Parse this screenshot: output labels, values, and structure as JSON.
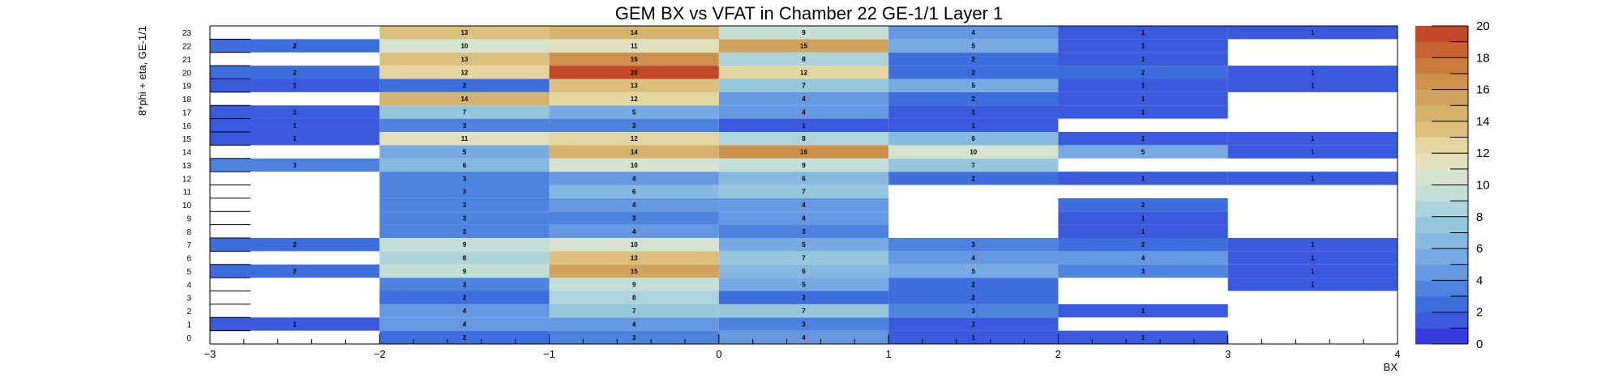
{
  "chart_data": {
    "type": "heatmap",
    "title": "GEM BX vs VFAT in Chamber 22 GE-1/1 Layer 1",
    "xlabel": "BX",
    "ylabel": "8*phi + eta, GE-1/1",
    "x_bin_edges": [
      -3,
      -2,
      -1,
      0,
      1,
      2,
      3,
      4
    ],
    "xlim": [
      -3,
      4
    ],
    "ylim": [
      0,
      24
    ],
    "x_ticks": [
      -3,
      -2,
      -1,
      0,
      1,
      2,
      3,
      4
    ],
    "x_tick_labels": [
      "−3",
      "−2",
      "−1",
      "0",
      "1",
      "2",
      "3",
      "4"
    ],
    "y_categories": [
      "0",
      "1",
      "2",
      "3",
      "4",
      "5",
      "6",
      "7",
      "8",
      "9",
      "10",
      "11",
      "12",
      "13",
      "14",
      "15",
      "16",
      "17",
      "18",
      "19",
      "20",
      "21",
      "22",
      "23"
    ],
    "z_range": [
      0,
      20
    ],
    "colorbar_ticks": [
      0,
      2,
      4,
      6,
      8,
      10,
      12,
      14,
      16,
      18,
      20
    ],
    "colorbar_tick_labels": [
      "0",
      "2",
      "4",
      "6",
      "8",
      "10",
      "12",
      "14",
      "16",
      "18",
      "20"
    ],
    "columns": [
      "-3..-2",
      "-2..-1",
      "-1..0",
      "0..1",
      "1..2",
      "2..3",
      "3..4"
    ],
    "rows": [
      {
        "y": 0,
        "values": [
          null,
          2,
          3,
          4,
          1,
          1,
          null
        ]
      },
      {
        "y": 1,
        "values": [
          1,
          4,
          4,
          3,
          1,
          null,
          null
        ]
      },
      {
        "y": 2,
        "values": [
          null,
          4,
          7,
          7,
          3,
          1,
          null
        ]
      },
      {
        "y": 3,
        "values": [
          null,
          2,
          8,
          2,
          2,
          null,
          null
        ]
      },
      {
        "y": 4,
        "values": [
          null,
          3,
          9,
          5,
          2,
          null,
          1
        ]
      },
      {
        "y": 5,
        "values": [
          2,
          9,
          15,
          6,
          5,
          3,
          1
        ]
      },
      {
        "y": 6,
        "values": [
          null,
          8,
          13,
          7,
          4,
          4,
          1
        ]
      },
      {
        "y": 7,
        "values": [
          2,
          9,
          10,
          5,
          3,
          2,
          1
        ]
      },
      {
        "y": 8,
        "values": [
          null,
          3,
          4,
          3,
          null,
          1,
          null
        ]
      },
      {
        "y": 9,
        "values": [
          null,
          3,
          3,
          4,
          null,
          1,
          null
        ]
      },
      {
        "y": 10,
        "values": [
          null,
          3,
          4,
          4,
          null,
          2,
          null
        ]
      },
      {
        "y": 11,
        "values": [
          null,
          3,
          6,
          7,
          null,
          null,
          null
        ]
      },
      {
        "y": 12,
        "values": [
          null,
          3,
          4,
          6,
          2,
          1,
          1
        ]
      },
      {
        "y": 13,
        "values": [
          3,
          6,
          10,
          9,
          7,
          null,
          null
        ]
      },
      {
        "y": 14,
        "values": [
          null,
          5,
          14,
          16,
          10,
          5,
          1
        ]
      },
      {
        "y": 15,
        "values": [
          1,
          11,
          12,
          8,
          6,
          1,
          1
        ]
      },
      {
        "y": 16,
        "values": [
          1,
          3,
          3,
          1,
          1,
          null,
          null
        ]
      },
      {
        "y": 17,
        "values": [
          1,
          7,
          5,
          4,
          1,
          1,
          null
        ]
      },
      {
        "y": 18,
        "values": [
          null,
          14,
          12,
          4,
          2,
          1,
          null
        ]
      },
      {
        "y": 19,
        "values": [
          1,
          2,
          13,
          7,
          5,
          1,
          1
        ]
      },
      {
        "y": 20,
        "values": [
          2,
          12,
          20,
          12,
          2,
          2,
          1
        ]
      },
      {
        "y": 21,
        "values": [
          null,
          13,
          16,
          8,
          2,
          1,
          null
        ]
      },
      {
        "y": 22,
        "values": [
          2,
          10,
          11,
          15,
          5,
          1,
          null
        ]
      },
      {
        "y": 23,
        "values": [
          null,
          13,
          14,
          9,
          4,
          1,
          1
        ]
      }
    ]
  }
}
